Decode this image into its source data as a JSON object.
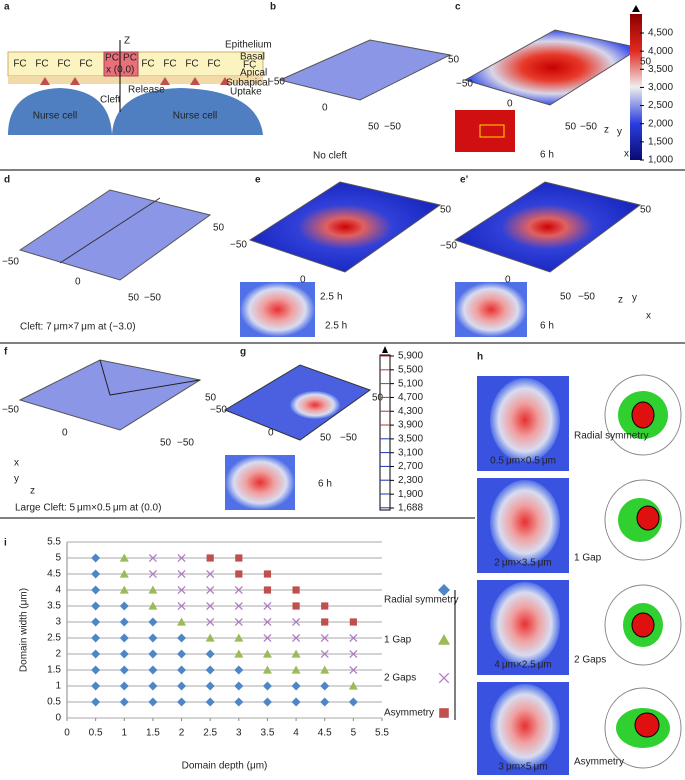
{
  "panels": {
    "a": {
      "letter": "a",
      "epithelium": "Epithelium",
      "fc": "FC",
      "pc": "PC",
      "z": "Z",
      "origin": "x (0,0)",
      "release": "Release",
      "cleft": "Cleft",
      "nurse_cell": "Nurse cell",
      "basal": "Basal",
      "apical": "Apical",
      "subapical": "Subapical",
      "uptake": "Uptake"
    },
    "b": {
      "letter": "b",
      "axis_labels": [
        "50",
        "−50",
        "0",
        "50",
        "−50"
      ],
      "caption": "No cleft"
    },
    "c": {
      "letter": "c",
      "axis_labels": [
        "50",
        "−50",
        "0",
        "50",
        "−50"
      ],
      "time": "6 h",
      "colorbar": [
        "4,500",
        "4,000",
        "3,500",
        "3,000",
        "2,500",
        "2,000",
        "1,500",
        "1,000"
      ],
      "axes": [
        "y",
        "z",
        "x"
      ]
    },
    "d": {
      "letter": "d",
      "axis_labels": [
        "50",
        "−50",
        "0",
        "50",
        "−50"
      ],
      "caption": "Cleft: 7 μm×7 μm at (−3.0)"
    },
    "e": {
      "letter": "e",
      "axis_labels": [
        "50",
        "−50",
        "0",
        "2.5",
        "h"
      ],
      "time": "2.5 h"
    },
    "e2": {
      "letter": "e’",
      "axis_labels": [
        "50",
        "−50",
        "0",
        "50",
        "−50"
      ],
      "time": "6 h",
      "axes": [
        "y",
        "z",
        "x"
      ]
    },
    "f": {
      "letter": "f",
      "axis_labels": [
        "50",
        "−50",
        "0",
        "50",
        "−50"
      ],
      "caption": "Large Cleft: 5 μm×0.5 μm at (0.0)",
      "axes": [
        "x",
        "y",
        "z"
      ]
    },
    "g": {
      "letter": "g",
      "axis_labels": [
        "50",
        "−50",
        "0",
        "50",
        "−50"
      ],
      "time": "6 h",
      "colorbar": [
        "5,900",
        "5,500",
        "5,100",
        "4,700",
        "4,300",
        "3,900",
        "3,500",
        "3,100",
        "2,700",
        "2,300",
        "1,900",
        "1,688"
      ]
    },
    "h": {
      "letter": "h",
      "rows": [
        {
          "size": "0.5 μm×0.5 μm",
          "label": "Radial symmetry"
        },
        {
          "size": "2 μm×3.5 μm",
          "label": "1 Gap"
        },
        {
          "size": "4 μm×2.5 μm",
          "label": "2 Gaps"
        },
        {
          "size": "3 μm×5 μm",
          "label": "Asymmetry"
        }
      ]
    },
    "i": {
      "letter": "i"
    }
  },
  "chart_data": {
    "type": "scatter",
    "x_label": "Domain depth (μm)",
    "y_label": "Domain width (μm)",
    "xlim": [
      0,
      5.5
    ],
    "ylim": [
      0,
      5.5
    ],
    "xticks": [
      0,
      0.5,
      1,
      1.5,
      2,
      2.5,
      3,
      3.5,
      4,
      4.5,
      5,
      5.5
    ],
    "yticks": [
      0,
      0.5,
      1,
      1.5,
      2,
      2.5,
      3,
      3.5,
      4,
      4.5,
      5,
      5.5
    ],
    "grid": true,
    "series": [
      {
        "name": "Radial symmetry",
        "marker": "diamond",
        "color": "#4f86c6",
        "x": [
          0.5,
          1,
          1.5,
          2,
          2.5,
          3,
          3.5,
          4,
          4.5,
          5,
          0.5,
          1,
          1.5,
          2,
          2.5,
          3,
          3.5,
          4,
          4.5,
          0.5,
          1,
          1.5,
          2,
          2.5,
          3,
          0.5,
          1,
          1.5,
          2,
          2.5,
          0.5,
          1,
          1.5,
          2,
          0.5,
          1,
          1.5,
          0.5,
          1,
          0.5,
          0.5,
          0.5
        ],
        "y": [
          0.5,
          0.5,
          0.5,
          0.5,
          0.5,
          0.5,
          0.5,
          0.5,
          0.5,
          0.5,
          1,
          1,
          1,
          1,
          1,
          1,
          1,
          1,
          1,
          1.5,
          1.5,
          1.5,
          1.5,
          1.5,
          1.5,
          2,
          2,
          2,
          2,
          2,
          2.5,
          2.5,
          2.5,
          2.5,
          3,
          3,
          3,
          3.5,
          3.5,
          4,
          4.5,
          5
        ]
      },
      {
        "name": "1 Gap",
        "marker": "triangle",
        "color": "#9bbb59",
        "x": [
          5,
          3.5,
          4,
          4.5,
          3,
          3.5,
          4,
          2.5,
          3,
          2,
          1.5,
          1,
          1.5,
          1,
          1
        ],
        "y": [
          1,
          1.5,
          1.5,
          1.5,
          2,
          2,
          2,
          2.5,
          2.5,
          3,
          3.5,
          4,
          4,
          4.5,
          5
        ]
      },
      {
        "name": "2 Gaps",
        "marker": "cross",
        "color": "#b07cc6",
        "x": [
          5,
          4.5,
          5,
          3.5,
          4,
          4.5,
          5,
          2.5,
          3,
          3.5,
          4,
          2,
          2.5,
          3,
          3.5,
          2,
          2.5,
          3,
          1.5,
          2,
          2.5,
          1.5,
          2
        ],
        "y": [
          1.5,
          2,
          2,
          2.5,
          2.5,
          2.5,
          2.5,
          3,
          3,
          3,
          3,
          3.5,
          3.5,
          3.5,
          3.5,
          4,
          4,
          4,
          4.5,
          4.5,
          4.5,
          5,
          5
        ]
      },
      {
        "name": "Asymmetry",
        "marker": "square",
        "color": "#c0504d",
        "x": [
          4.5,
          5,
          4,
          4.5,
          3.5,
          4,
          3,
          3.5,
          2.5,
          3
        ],
        "y": [
          3,
          3,
          3.5,
          3.5,
          4,
          4,
          4.5,
          4.5,
          5,
          5
        ]
      }
    ]
  }
}
